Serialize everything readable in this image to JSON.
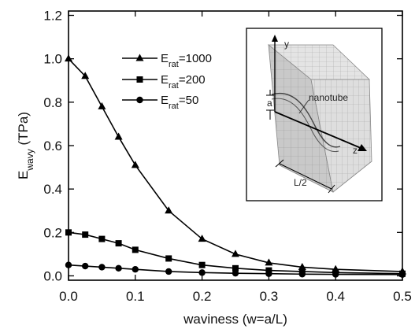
{
  "chart_data": {
    "type": "line",
    "xlabel": "waviness (w=a/L)",
    "ylabel_main": "E",
    "ylabel_sub": "wavy",
    "ylabel_unit": " (TPa)",
    "xlim": [
      0,
      0.5
    ],
    "ylim": [
      -0.02,
      1.22
    ],
    "x_ticks": [
      "0.0",
      "0.1",
      "0.2",
      "0.3",
      "0.4",
      "0.5"
    ],
    "y_ticks": [
      "0.0",
      "0.2",
      "0.4",
      "0.6",
      "0.8",
      "1.0",
      "1.2"
    ],
    "grid": false,
    "legend_position": "upper-middle",
    "x": [
      0,
      0.025,
      0.05,
      0.075,
      0.1,
      0.15,
      0.2,
      0.25,
      0.3,
      0.35,
      0.4,
      0.5
    ],
    "series": [
      {
        "name_main": "E",
        "name_sub": "rat",
        "name_rest": "=1000",
        "marker": "triangle",
        "values": [
          1.0,
          0.92,
          0.78,
          0.64,
          0.51,
          0.3,
          0.17,
          0.1,
          0.06,
          0.04,
          0.03,
          0.02
        ]
      },
      {
        "name_main": "E",
        "name_sub": "rat",
        "name_rest": "=200",
        "marker": "square",
        "values": [
          0.2,
          0.19,
          0.17,
          0.15,
          0.12,
          0.08,
          0.05,
          0.035,
          0.025,
          0.02,
          0.015,
          0.01
        ]
      },
      {
        "name_main": "E",
        "name_sub": "rat",
        "name_rest": "=50",
        "marker": "circle",
        "values": [
          0.05,
          0.045,
          0.04,
          0.035,
          0.03,
          0.02,
          0.015,
          0.012,
          0.01,
          0.008,
          0.007,
          0.006
        ]
      }
    ],
    "inset": {
      "axis_y": "y",
      "axis_z": "z",
      "label_a": "a",
      "label_nanotube": "nanotube",
      "label_half_length": "L/2"
    }
  }
}
